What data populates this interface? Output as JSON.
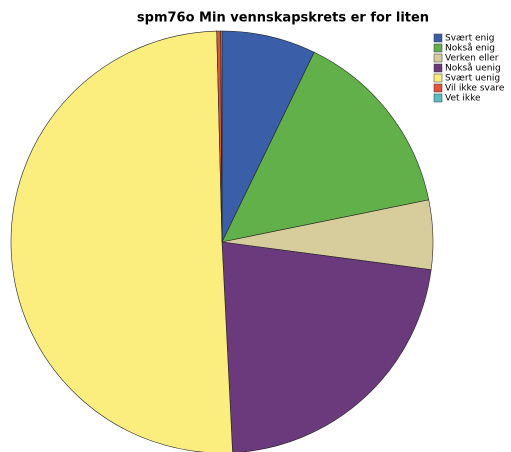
{
  "chart_data": {
    "type": "pie",
    "title": "spm76o Min vennskapskrets er for liten",
    "categories": [
      "Svært enig",
      "Nokså enig",
      "Verken eller",
      "Nokså uenig",
      "Svært uenig",
      "Vil ikke svare",
      "Vet ikke"
    ],
    "values": [
      7.2,
      14.6,
      5.3,
      22.1,
      50.4,
      0.3,
      0.1
    ],
    "colors": [
      "#3a5ea8",
      "#62b04a",
      "#d6cc9c",
      "#6b3a7c",
      "#fbee7e",
      "#e2533a",
      "#5bbcc4"
    ],
    "legend": "top-right"
  }
}
